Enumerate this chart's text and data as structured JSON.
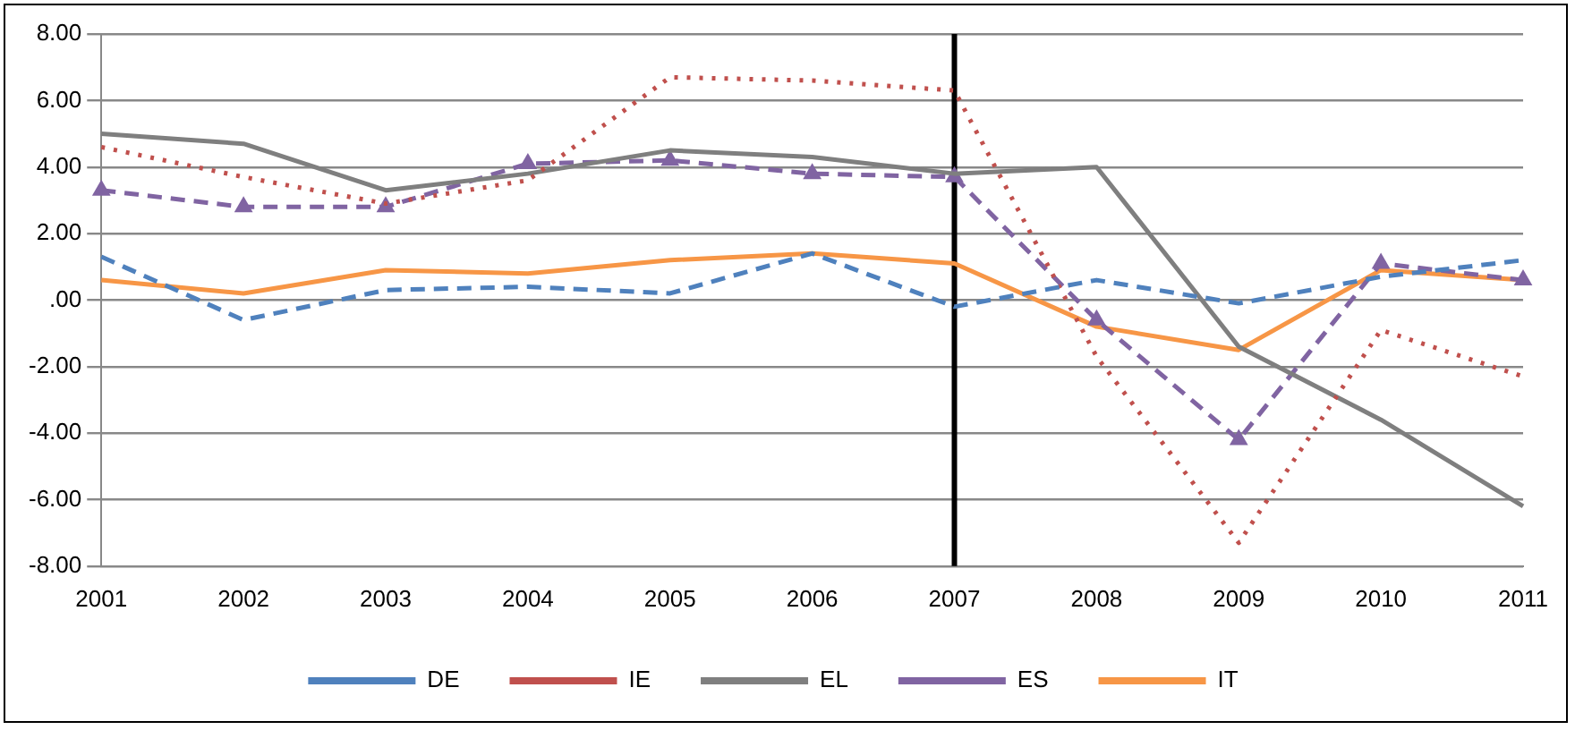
{
  "chart_data": {
    "type": "line",
    "categories": [
      "2001",
      "2002",
      "2003",
      "2004",
      "2005",
      "2006",
      "2007",
      "2008",
      "2009",
      "2010",
      "2011"
    ],
    "series": [
      {
        "name": "DE",
        "color": "#4f81bd",
        "line_style": "dashed",
        "marker": "none",
        "values": [
          1.3,
          -0.6,
          0.3,
          0.4,
          0.2,
          1.4,
          -0.2,
          0.6,
          -0.1,
          0.7,
          1.2
        ]
      },
      {
        "name": "IE",
        "color": "#c0504d",
        "line_style": "dotted",
        "marker": "none",
        "values": [
          4.6,
          3.7,
          2.9,
          3.6,
          6.7,
          6.6,
          6.3,
          -1.7,
          -7.3,
          -0.9,
          -2.3
        ]
      },
      {
        "name": "EL",
        "color": "#7f7f7f",
        "line_style": "solid",
        "marker": "none",
        "values": [
          5.0,
          4.7,
          3.3,
          3.8,
          4.5,
          4.3,
          3.8,
          4.0,
          -1.4,
          -3.6,
          -6.2
        ]
      },
      {
        "name": "ES",
        "color": "#8064a2",
        "line_style": "dashed",
        "marker": "triangle",
        "values": [
          3.3,
          2.8,
          2.8,
          4.1,
          4.2,
          3.8,
          3.7,
          -0.6,
          -4.2,
          1.1,
          0.6
        ]
      },
      {
        "name": "IT",
        "color": "#f79646",
        "line_style": "solid",
        "marker": "none",
        "values": [
          0.6,
          0.2,
          0.9,
          0.8,
          1.2,
          1.4,
          1.1,
          -0.8,
          -1.5,
          0.9,
          0.6
        ]
      }
    ],
    "ylim": [
      -8,
      8
    ],
    "yticks": [
      {
        "value": -8,
        "label": "-8.00"
      },
      {
        "value": -6,
        "label": "-6.00"
      },
      {
        "value": -4,
        "label": "-4.00"
      },
      {
        "value": -2,
        "label": "-2.00"
      },
      {
        "value": 0,
        "label": ".00"
      },
      {
        "value": 2,
        "label": "2.00"
      },
      {
        "value": 4,
        "label": "4.00"
      },
      {
        "value": 6,
        "label": "6.00"
      },
      {
        "value": 8,
        "label": "8.00"
      }
    ],
    "ref_lines": [
      {
        "axis": "x",
        "value": "2007",
        "color": "#000000"
      }
    ],
    "grid": "y",
    "legend": "bottom"
  }
}
